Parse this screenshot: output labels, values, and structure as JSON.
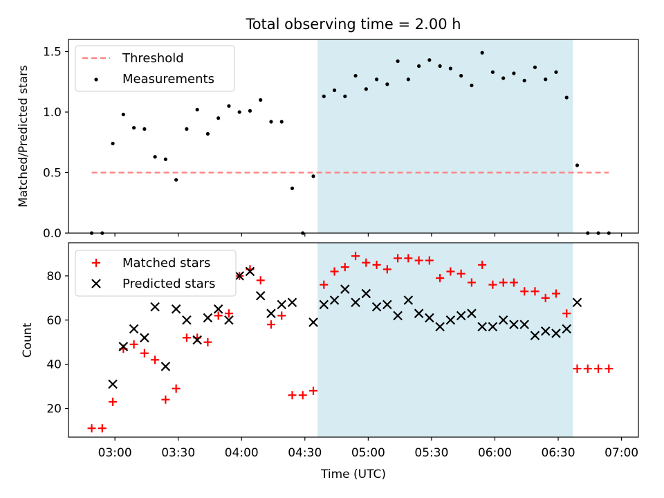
{
  "figure": {
    "title": "Total observing time = 2.00 h"
  },
  "colors": {
    "threshold": "#ff7f7f",
    "measurement": "#000000",
    "matched": "#ff0000",
    "predicted": "#000000",
    "highlight": "#add8e6"
  },
  "chart_data": [
    {
      "type": "scatter",
      "panel": "top",
      "xlabel": "",
      "ylabel": "Matched/Predicted stars",
      "ylim": [
        0,
        1.6
      ],
      "yticks": [
        0.0,
        0.5,
        1.0,
        1.5
      ],
      "ytick_labels": [
        "0.0",
        "0.5",
        "1.0",
        "1.5"
      ],
      "highlight_span": [
        "04:36",
        "06:37"
      ],
      "legend_position": "upper left",
      "threshold": {
        "name": "Threshold",
        "value": 0.5,
        "x_range": [
          "02:49",
          "06:54"
        ],
        "style": "dashed"
      },
      "series": [
        {
          "name": "Measurements",
          "points": [
            [
              "02:49",
              0.0
            ],
            [
              "02:54",
              0.0
            ],
            [
              "02:59",
              0.74
            ],
            [
              "03:04",
              0.98
            ],
            [
              "03:09",
              0.87
            ],
            [
              "03:14",
              0.86
            ],
            [
              "03:19",
              0.63
            ],
            [
              "03:24",
              0.61
            ],
            [
              "03:29",
              0.44
            ],
            [
              "03:34",
              0.86
            ],
            [
              "03:39",
              1.02
            ],
            [
              "03:44",
              0.82
            ],
            [
              "03:49",
              0.95
            ],
            [
              "03:54",
              1.05
            ],
            [
              "03:59",
              1.0
            ],
            [
              "04:04",
              1.01
            ],
            [
              "04:09",
              1.1
            ],
            [
              "04:14",
              0.92
            ],
            [
              "04:19",
              0.92
            ],
            [
              "04:24",
              0.37
            ],
            [
              "04:29",
              0.0
            ],
            [
              "04:34",
              0.47
            ],
            [
              "04:39",
              1.13
            ],
            [
              "04:44",
              1.18
            ],
            [
              "04:49",
              1.13
            ],
            [
              "04:54",
              1.3
            ],
            [
              "04:59",
              1.19
            ],
            [
              "05:04",
              1.27
            ],
            [
              "05:09",
              1.23
            ],
            [
              "05:14",
              1.42
            ],
            [
              "05:19",
              1.27
            ],
            [
              "05:24",
              1.38
            ],
            [
              "05:29",
              1.43
            ],
            [
              "05:34",
              1.38
            ],
            [
              "05:39",
              1.36
            ],
            [
              "05:44",
              1.3
            ],
            [
              "05:49",
              1.22
            ],
            [
              "05:54",
              1.49
            ],
            [
              "05:59",
              1.33
            ],
            [
              "06:04",
              1.28
            ],
            [
              "06:09",
              1.32
            ],
            [
              "06:14",
              1.26
            ],
            [
              "06:19",
              1.37
            ],
            [
              "06:24",
              1.27
            ],
            [
              "06:29",
              1.33
            ],
            [
              "06:34",
              1.12
            ],
            [
              "06:39",
              0.56
            ],
            [
              "06:44",
              0.0
            ],
            [
              "06:49",
              0.0
            ],
            [
              "06:54",
              0.0
            ]
          ]
        }
      ]
    },
    {
      "type": "scatter",
      "panel": "bottom",
      "xlabel": "Time (UTC)",
      "ylabel": "Count",
      "ylim": [
        7,
        95
      ],
      "yticks": [
        20,
        40,
        60,
        80
      ],
      "ytick_labels": [
        "20",
        "40",
        "60",
        "80"
      ],
      "xlim": [
        "02:38",
        "07:08"
      ],
      "xticks": [
        "03:00",
        "03:30",
        "04:00",
        "04:30",
        "05:00",
        "05:30",
        "06:00",
        "06:30",
        "07:00"
      ],
      "highlight_span": [
        "04:36",
        "06:37"
      ],
      "legend_position": "upper left",
      "series": [
        {
          "name": "Matched stars",
          "marker": "+",
          "points": [
            [
              "02:49",
              11
            ],
            [
              "02:54",
              11
            ],
            [
              "02:59",
              23
            ],
            [
              "03:04",
              47
            ],
            [
              "03:09",
              49
            ],
            [
              "03:14",
              45
            ],
            [
              "03:19",
              42
            ],
            [
              "03:24",
              24
            ],
            [
              "03:29",
              29
            ],
            [
              "03:34",
              52
            ],
            [
              "03:39",
              52
            ],
            [
              "03:44",
              50
            ],
            [
              "03:49",
              62
            ],
            [
              "03:54",
              63
            ],
            [
              "03:59",
              80
            ],
            [
              "04:04",
              83
            ],
            [
              "04:09",
              78
            ],
            [
              "04:14",
              58
            ],
            [
              "04:19",
              62
            ],
            [
              "04:24",
              26
            ],
            [
              "04:29",
              26
            ],
            [
              "04:34",
              28
            ],
            [
              "04:39",
              76
            ],
            [
              "04:44",
              82
            ],
            [
              "04:49",
              84
            ],
            [
              "04:54",
              89
            ],
            [
              "04:59",
              86
            ],
            [
              "05:04",
              85
            ],
            [
              "05:09",
              83
            ],
            [
              "05:14",
              88
            ],
            [
              "05:19",
              88
            ],
            [
              "05:24",
              87
            ],
            [
              "05:29",
              87
            ],
            [
              "05:34",
              79
            ],
            [
              "05:39",
              82
            ],
            [
              "05:44",
              81
            ],
            [
              "05:49",
              77
            ],
            [
              "05:54",
              85
            ],
            [
              "05:59",
              76
            ],
            [
              "06:04",
              77
            ],
            [
              "06:09",
              77
            ],
            [
              "06:14",
              73
            ],
            [
              "06:19",
              73
            ],
            [
              "06:24",
              70
            ],
            [
              "06:29",
              72
            ],
            [
              "06:34",
              63
            ],
            [
              "06:39",
              38
            ],
            [
              "06:44",
              38
            ],
            [
              "06:49",
              38
            ],
            [
              "06:54",
              38
            ]
          ]
        },
        {
          "name": "Predicted stars",
          "marker": "x",
          "points": [
            [
              "02:59",
              31
            ],
            [
              "03:04",
              48
            ],
            [
              "03:09",
              56
            ],
            [
              "03:14",
              52
            ],
            [
              "03:19",
              66
            ],
            [
              "03:24",
              39
            ],
            [
              "03:29",
              65
            ],
            [
              "03:34",
              60
            ],
            [
              "03:39",
              51
            ],
            [
              "03:44",
              61
            ],
            [
              "03:49",
              65
            ],
            [
              "03:54",
              60
            ],
            [
              "03:59",
              80
            ],
            [
              "04:04",
              82
            ],
            [
              "04:09",
              71
            ],
            [
              "04:14",
              63
            ],
            [
              "04:19",
              67
            ],
            [
              "04:24",
              68
            ],
            [
              "04:34",
              59
            ],
            [
              "04:39",
              67
            ],
            [
              "04:44",
              69
            ],
            [
              "04:49",
              74
            ],
            [
              "04:54",
              68
            ],
            [
              "04:59",
              72
            ],
            [
              "05:04",
              66
            ],
            [
              "05:09",
              67
            ],
            [
              "05:14",
              62
            ],
            [
              "05:19",
              69
            ],
            [
              "05:24",
              63
            ],
            [
              "05:29",
              61
            ],
            [
              "05:34",
              57
            ],
            [
              "05:39",
              60
            ],
            [
              "05:44",
              62
            ],
            [
              "05:49",
              63
            ],
            [
              "05:54",
              57
            ],
            [
              "05:59",
              57
            ],
            [
              "06:04",
              60
            ],
            [
              "06:09",
              58
            ],
            [
              "06:14",
              58
            ],
            [
              "06:19",
              53
            ],
            [
              "06:24",
              55
            ],
            [
              "06:29",
              54
            ],
            [
              "06:34",
              56
            ],
            [
              "06:39",
              68
            ]
          ]
        }
      ]
    }
  ]
}
